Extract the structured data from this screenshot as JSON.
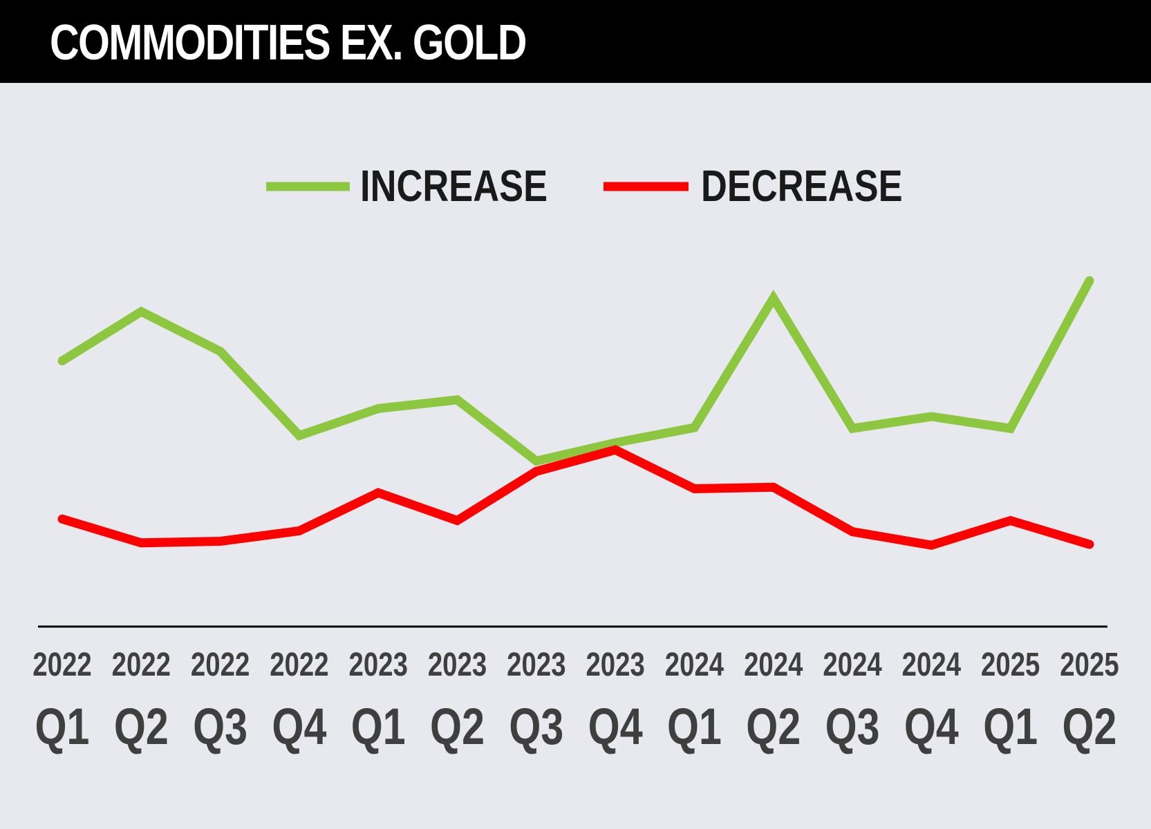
{
  "header": {
    "title": "COMMODITIES EX. GOLD"
  },
  "colors": {
    "background": "#e8e9ee",
    "title_bar": "#000000",
    "title_text": "#ffffff",
    "increase": "#8dc63f",
    "decrease": "#ff0000",
    "axis": "#000000",
    "tick_text": "#3f3f3f",
    "legend_text": "#1a1a1a"
  },
  "chart_data": {
    "type": "line",
    "title": "COMMODITIES EX. GOLD",
    "categories": [
      {
        "year": "2022",
        "quarter": "Q1"
      },
      {
        "year": "2022",
        "quarter": "Q2"
      },
      {
        "year": "2022",
        "quarter": "Q3"
      },
      {
        "year": "2022",
        "quarter": "Q4"
      },
      {
        "year": "2023",
        "quarter": "Q1"
      },
      {
        "year": "2023",
        "quarter": "Q2"
      },
      {
        "year": "2023",
        "quarter": "Q3"
      },
      {
        "year": "2023",
        "quarter": "Q4"
      },
      {
        "year": "2024",
        "quarter": "Q1"
      },
      {
        "year": "2024",
        "quarter": "Q2"
      },
      {
        "year": "2024",
        "quarter": "Q3"
      },
      {
        "year": "2024",
        "quarter": "Q4"
      },
      {
        "year": "2025",
        "quarter": "Q1"
      },
      {
        "year": "2025",
        "quarter": "Q2"
      }
    ],
    "series": [
      {
        "name": "INCREASE",
        "color": "#8dc63f",
        "values": [
          42.4,
          48.6,
          43.6,
          33.0,
          36.4,
          37.5,
          29.8,
          32.1,
          34.0,
          50.3,
          33.9,
          35.4,
          33.9,
          52.5
        ]
      },
      {
        "name": "DECREASE",
        "color": "#ff0000",
        "values": [
          22.5,
          19.5,
          19.7,
          21.0,
          25.8,
          22.3,
          28.5,
          31.2,
          26.3,
          26.5,
          20.9,
          19.2,
          22.3,
          19.3
        ]
      }
    ],
    "ylim": [
      0,
      80
    ],
    "grid": false,
    "legend_position": "top-center",
    "xlabel": "",
    "ylabel": ""
  }
}
